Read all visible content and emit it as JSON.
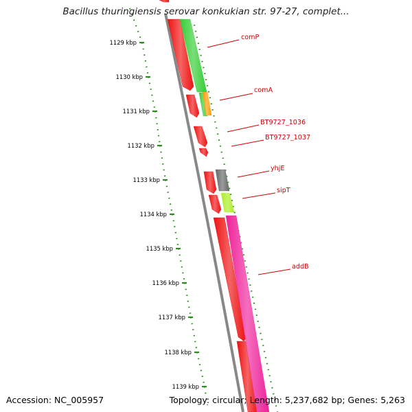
{
  "title": "Bacillus thuringiensis serovar konkukian str. 97-27, complet...",
  "footer": {
    "accession": "Accession: NC_005957",
    "summary": "Topology: circular; Length: 5,237,682 bp; Genes: 5,263"
  },
  "ticks": [
    {
      "kbp": 1129,
      "label": "1129 kbp"
    },
    {
      "kbp": 1130,
      "label": "1130 kbp"
    },
    {
      "kbp": 1131,
      "label": "1131 kbp"
    },
    {
      "kbp": 1132,
      "label": "1132 kbp"
    },
    {
      "kbp": 1133,
      "label": "1133 kbp"
    },
    {
      "kbp": 1134,
      "label": "1134 kbp"
    },
    {
      "kbp": 1135,
      "label": "1135 kbp"
    },
    {
      "kbp": 1136,
      "label": "1136 kbp"
    },
    {
      "kbp": 1137,
      "label": "1137 kbp"
    },
    {
      "kbp": 1138,
      "label": "1138 kbp"
    },
    {
      "kbp": 1139,
      "label": "1139 kbp"
    }
  ],
  "colors": {
    "cds": "#ee1111",
    "tick": "#2e8b22",
    "backbone": "#888888",
    "label": "#cc0000"
  },
  "genes": [
    {
      "name": "comP",
      "start": 1127.9,
      "end": 1130.3,
      "color": "#33cc33"
    },
    {
      "name": "comA",
      "start": 1130.3,
      "end": 1130.95,
      "color": "#ff9900"
    },
    {
      "name": "BT9727_1036",
      "start": null,
      "end": null,
      "color": "#ee1111"
    },
    {
      "name": "BT9727_1037",
      "start": null,
      "end": null,
      "color": "#ee1111"
    },
    {
      "name": "yhjE",
      "start": 1132.7,
      "end": 1133.3,
      "color": "#666666"
    },
    {
      "name": "sipT",
      "start": 1133.4,
      "end": 1134.0,
      "color": "#aaee22"
    },
    {
      "name": "addB",
      "start": 1134.1,
      "end": 1139.9,
      "color": "#ee2299"
    }
  ]
}
